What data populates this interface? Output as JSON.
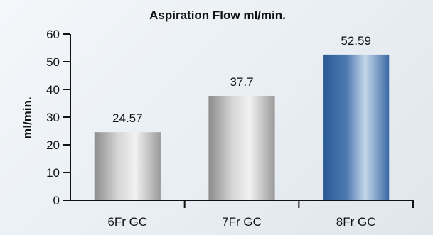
{
  "chart_data": {
    "type": "bar",
    "title": "Aspiration Flow ml/min.",
    "xlabel": "",
    "ylabel": "ml/min.",
    "categories": [
      "6Fr GC",
      "7Fr GC",
      "8Fr GC"
    ],
    "values": [
      24.57,
      37.7,
      52.59
    ],
    "value_labels": [
      "24.57",
      "37.7",
      "52.59"
    ],
    "ylim": [
      0,
      60
    ],
    "yticks": [
      0,
      10,
      20,
      30,
      40,
      50,
      60
    ],
    "grid": false,
    "colors": {
      "gray_bar_dark": "#8a8a8a",
      "gray_bar_light": "#f0f0f0",
      "blue_bar_dark": "#2a5a96",
      "blue_bar_light": "#c9d9ea"
    }
  }
}
